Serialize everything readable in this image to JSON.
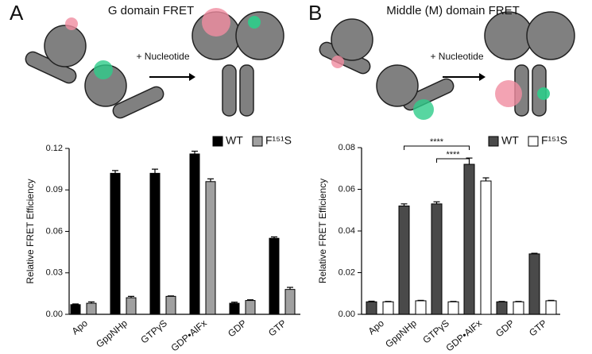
{
  "chart_data": [
    {
      "type": "bar",
      "panel_label": "A",
      "title": "G domain FRET",
      "diagram_label": "+ Nucleotide",
      "y_label": "Relative FRET Efficiency",
      "categories": [
        "Apo",
        "GppNHp",
        "GTPγS",
        "GDP•AlFx",
        "GDP",
        "GTP"
      ],
      "series": [
        {
          "name": "WT",
          "color": "#000000",
          "values": [
            0.007,
            0.102,
            0.102,
            0.116,
            0.008,
            0.055
          ],
          "errors": [
            0.0005,
            0.002,
            0.003,
            0.002,
            0.0008,
            0.001
          ]
        },
        {
          "name": "F¹⁵¹S",
          "color": "#a0a0a0",
          "values": [
            0.008,
            0.012,
            0.013,
            0.096,
            0.01,
            0.018
          ],
          "errors": [
            0.001,
            0.001,
            0.0003,
            0.002,
            0.0005,
            0.0015
          ]
        }
      ],
      "ylim": [
        0,
        0.12
      ],
      "yticks": [
        {
          "value": 0,
          "label": "0.00"
        },
        0.03,
        0.06,
        0.09,
        0.12
      ]
    },
    {
      "type": "bar",
      "panel_label": "B",
      "title": "Middle (M) domain FRET",
      "diagram_label": "+ Nucleotide",
      "y_label": "Relative FRET Efficiency",
      "categories": [
        "Apo",
        "GppNHp",
        "GTPγS",
        "GDP•AlFx",
        "GDP",
        "GTP"
      ],
      "series": [
        {
          "name": "WT",
          "color": "#4a4a4a",
          "values": [
            0.006,
            0.052,
            0.053,
            0.072,
            0.006,
            0.029
          ],
          "errors": [
            0.0003,
            0.001,
            0.001,
            0.003,
            0.0002,
            0.0003
          ]
        },
        {
          "name": "F¹⁵¹S",
          "color": "#ffffff",
          "values": [
            0.006,
            0.0065,
            0.006,
            0.064,
            0.006,
            0.0065
          ],
          "errors": [
            0.0002,
            0.0002,
            0.0002,
            0.0015,
            0.0002,
            0.0002
          ]
        }
      ],
      "ylim": [
        0,
        0.08
      ],
      "yticks": [
        {
          "value": 0,
          "label": "0.00"
        },
        0.02,
        0.04,
        0.06,
        0.08
      ],
      "annotations": [
        {
          "text": "****",
          "from": "GppNHp",
          "to": "GDP•AlFx"
        },
        {
          "text": "****",
          "from": "GTPγS",
          "to": "GDP•AlFx"
        }
      ]
    }
  ]
}
